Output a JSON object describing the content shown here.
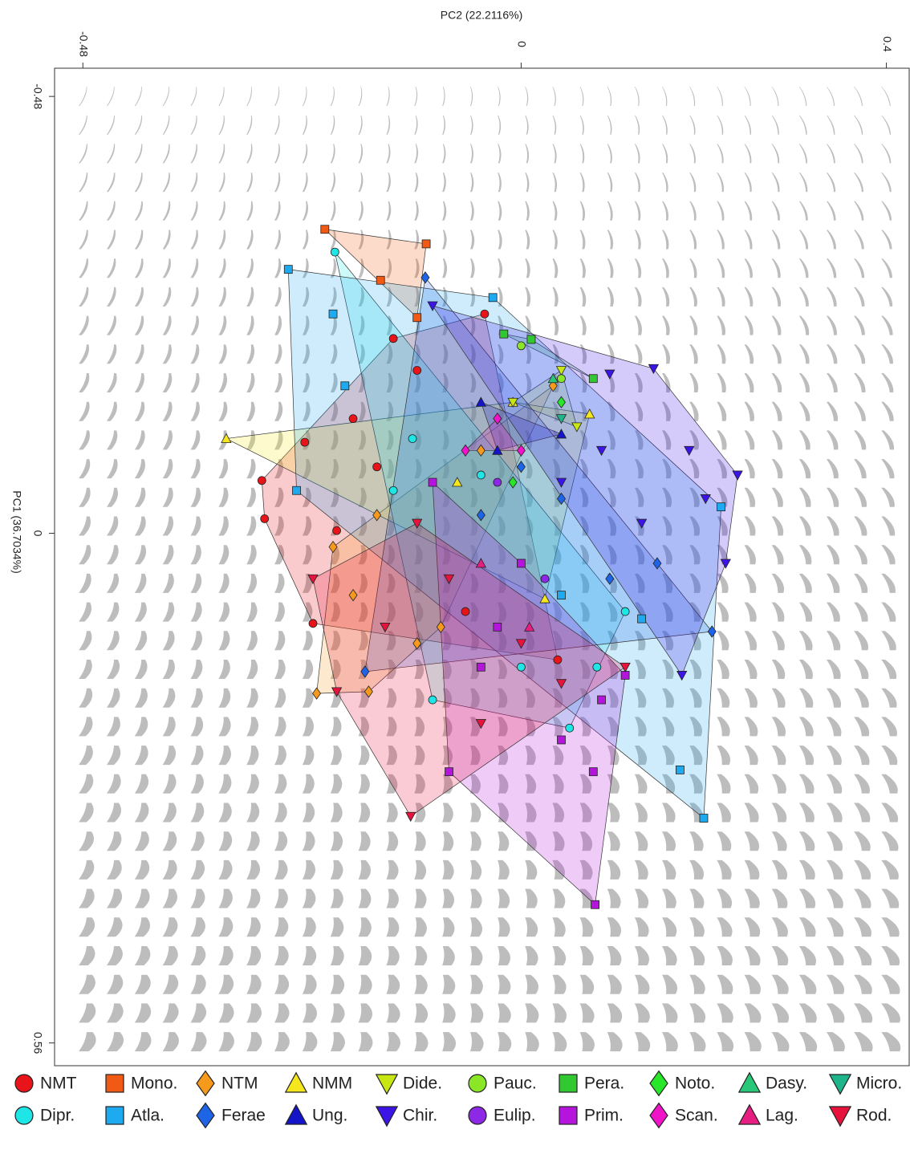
{
  "chart_data": {
    "type": "scatter",
    "x_label": "PC2 (22.2116%)",
    "y_label": "PC1 (36.7034%)",
    "xlim": [
      -0.511,
      0.425
    ],
    "ylim": [
      -0.511,
      0.585
    ],
    "xticks": [
      -0.48,
      0,
      0.4
    ],
    "yticks": [
      -0.48,
      0,
      0.56
    ],
    "y_inverted": true,
    "hulls": true,
    "series": [
      {
        "name": "NMT",
        "color": "#e8141a",
        "marker": "circle",
        "x": [
          -0.284,
          -0.281,
          -0.228,
          -0.14,
          -0.04,
          0.04,
          -0.061,
          -0.237,
          -0.184,
          -0.158,
          -0.114,
          -0.202
        ],
        "y": [
          -0.058,
          -0.016,
          0.099,
          -0.214,
          -0.241,
          0.139,
          0.086,
          -0.1,
          -0.126,
          -0.073,
          -0.179,
          -0.003
        ]
      },
      {
        "name": "Mono.",
        "color": "#f05a14",
        "marker": "square",
        "x": [
          -0.215,
          -0.104,
          -0.154,
          -0.114
        ],
        "y": [
          -0.334,
          -0.318,
          -0.278,
          -0.237
        ]
      },
      {
        "name": "NTM",
        "color": "#f59a1c",
        "marker": "diamond",
        "x": [
          -0.224,
          -0.206,
          -0.167,
          -0.114,
          0.035,
          -0.044,
          -0.184,
          -0.088,
          -0.158
        ],
        "y": [
          0.176,
          0.015,
          0.174,
          0.121,
          -0.162,
          -0.091,
          0.068,
          0.103,
          -0.02
        ]
      },
      {
        "name": "NMM",
        "color": "#f5e61e",
        "marker": "tri-up",
        "x": [
          -0.323,
          -0.009,
          0.075,
          0.026,
          -0.07
        ],
        "y": [
          -0.104,
          -0.144,
          -0.131,
          0.072,
          -0.056
        ]
      },
      {
        "name": "Dide.",
        "color": "#c8e614",
        "marker": "tri-down",
        "x": [
          0.061,
          -0.009,
          0.044
        ],
        "y": [
          -0.117,
          -0.144,
          -0.179
        ]
      },
      {
        "name": "Pauc.",
        "color": "#8ce628",
        "marker": "circle",
        "x": [
          0,
          0.044
        ],
        "y": [
          -0.206,
          -0.17
        ]
      },
      {
        "name": "Pera.",
        "color": "#32c832",
        "marker": "square",
        "x": [
          -0.019,
          0.011,
          0.079
        ],
        "y": [
          -0.219,
          -0.213,
          -0.17
        ]
      },
      {
        "name": "Noto.",
        "color": "#28e628",
        "marker": "diamond",
        "x": [
          0.044,
          -0.009
        ],
        "y": [
          -0.144,
          -0.056
        ]
      },
      {
        "name": "Dasy.",
        "color": "#28c878",
        "marker": "tri-up",
        "x": [
          0.035
        ],
        "y": [
          -0.17
        ]
      },
      {
        "name": "Micro.",
        "color": "#1eb48c",
        "marker": "tri-down",
        "x": [
          0.044
        ],
        "y": [
          -0.126
        ]
      },
      {
        "name": "Dipr.",
        "color": "#1ee6e6",
        "marker": "circle",
        "x": [
          -0.204,
          -0.14,
          -0.119,
          0.053,
          0.083,
          -0.044,
          0.114,
          -0.097,
          0
        ],
        "y": [
          -0.309,
          -0.047,
          -0.104,
          0.214,
          0.147,
          -0.064,
          0.086,
          0.183,
          0.147
        ]
      },
      {
        "name": "Atla.",
        "color": "#1eaaf0",
        "marker": "square",
        "x": [
          -0.255,
          -0.246,
          -0.206,
          -0.031,
          0.2,
          0.174,
          -0.193,
          0.044,
          0.132,
          0.219
        ],
        "y": [
          -0.29,
          -0.047,
          -0.241,
          -0.259,
          0.313,
          0.26,
          -0.162,
          0.068,
          0.094,
          -0.029
        ]
      },
      {
        "name": "Ferae",
        "color": "#1e64e6",
        "marker": "diamond",
        "x": [
          -0.105,
          0.209,
          -0.171,
          0.044,
          0.097,
          -0.044,
          0,
          0.149
        ],
        "y": [
          -0.281,
          0.108,
          0.152,
          -0.038,
          0.05,
          -0.02,
          -0.073,
          0.033
        ]
      },
      {
        "name": "Ung.",
        "color": "#1414c8",
        "marker": "tri-up",
        "x": [
          -0.044,
          0.044,
          -0.026
        ],
        "y": [
          -0.144,
          -0.109,
          -0.091
        ]
      },
      {
        "name": "Chir.",
        "color": "#3c14e6",
        "marker": "tri-down",
        "x": [
          0.145,
          0.237,
          0.224,
          0.176,
          -0.097,
          0.097,
          0.184,
          0.132,
          0.044,
          0.202,
          0.088
        ],
        "y": [
          -0.181,
          -0.064,
          0.033,
          0.156,
          -0.25,
          -0.175,
          -0.091,
          -0.011,
          -0.056,
          -0.038,
          -0.091
        ]
      },
      {
        "name": "Eulip.",
        "color": "#8c28e6",
        "marker": "circle",
        "x": [
          -0.026,
          0.026
        ],
        "y": [
          -0.056,
          0.05
        ]
      },
      {
        "name": "Prim.",
        "color": "#b414dc",
        "marker": "square",
        "x": [
          0.081,
          -0.097,
          -0.079,
          0.044,
          0.088,
          -0.026,
          0,
          -0.044,
          0.079,
          0.114
        ],
        "y": [
          0.408,
          -0.056,
          0.262,
          0.227,
          0.183,
          0.103,
          0.033,
          0.147,
          0.262,
          0.156
        ]
      },
      {
        "name": "Scan.",
        "color": "#f014c8",
        "marker": "diamond",
        "x": [
          -0.061,
          -0.026,
          0
        ],
        "y": [
          -0.091,
          -0.126,
          -0.091
        ]
      },
      {
        "name": "Lag.",
        "color": "#e61e82",
        "marker": "tri-up",
        "x": [
          -0.044,
          0.009
        ],
        "y": [
          0.033,
          0.103
        ]
      },
      {
        "name": "Rod.",
        "color": "#e6143c",
        "marker": "tri-down",
        "x": [
          -0.121,
          -0.228,
          -0.202,
          0.114,
          -0.114,
          -0.079,
          0,
          0.044,
          -0.149,
          -0.044
        ],
        "y": [
          0.311,
          0.05,
          0.174,
          0.147,
          -0.011,
          0.05,
          0.121,
          0.165,
          0.103,
          0.209
        ]
      }
    ]
  }
}
